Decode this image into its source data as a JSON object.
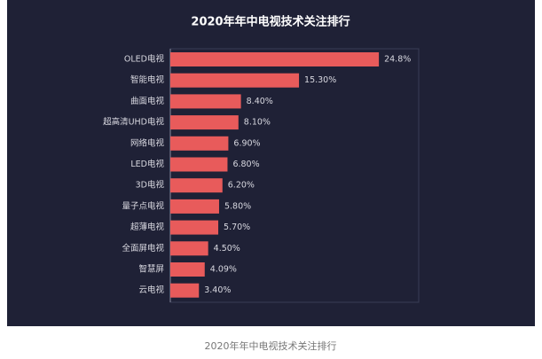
{
  "chart_data": {
    "type": "bar",
    "orientation": "horizontal",
    "title": "2020年年中电视技术关注排行",
    "categories": [
      "OLED电视",
      "智能电视",
      "曲面电视",
      "超高清UHD电视",
      "网络电视",
      "LED电视",
      "3D电视",
      "量子点电视",
      "超薄电视",
      "全面屏电视",
      "智慧屏",
      "云电视"
    ],
    "values": [
      24.8,
      15.3,
      8.4,
      8.1,
      6.9,
      6.8,
      6.2,
      5.8,
      5.7,
      4.5,
      4.09,
      3.4
    ],
    "value_labels": [
      "24.8%",
      "15.30%",
      "8.40%",
      "8.10%",
      "6.90%",
      "6.80%",
      "6.20%",
      "5.80%",
      "5.70%",
      "4.50%",
      "4.09%",
      "3.40%"
    ],
    "color": "#e85b5b"
  },
  "caption": "2020年年中电视技术关注排行"
}
